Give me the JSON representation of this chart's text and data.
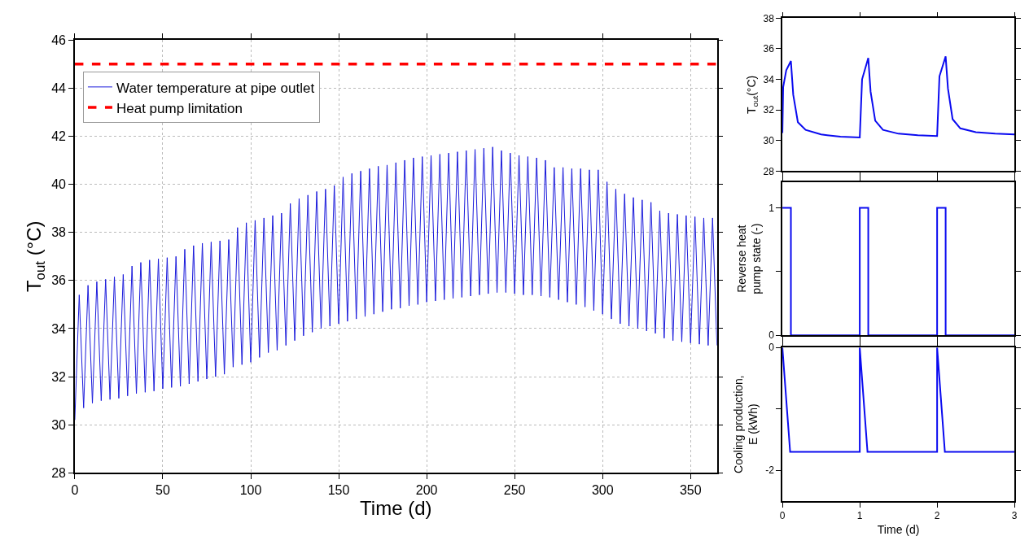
{
  "chart_data": [
    {
      "type": "line",
      "xlabel": "Time (d)",
      "ylabel": "T$_{out}$ (°C)",
      "xlim": [
        0,
        365
      ],
      "xticks": [
        0,
        50,
        100,
        150,
        200,
        250,
        300,
        350
      ],
      "ylim": [
        28,
        46
      ],
      "yticks": [
        28,
        30,
        32,
        34,
        36,
        38,
        40,
        42,
        44,
        46
      ],
      "grid": true,
      "legend": "top left",
      "series": [
        {
          "name": "Water temperature at pipe outlet",
          "color": "#1a1adb",
          "x": [
            0,
            2.5,
            5,
            7.5,
            10,
            12.5,
            15,
            17.5,
            20,
            22.5,
            25,
            27.5,
            30,
            32.5,
            35,
            37.5,
            40,
            42.5,
            45,
            47.5,
            50,
            52.5,
            55,
            57.5,
            60,
            62.5,
            65,
            67.5,
            70,
            72.5,
            75,
            77.5,
            80,
            82.5,
            85,
            87.5,
            90,
            92.5,
            95,
            97.5,
            100,
            102.5,
            105,
            107.5,
            110,
            112.5,
            115,
            117.5,
            120,
            122.5,
            125,
            127.5,
            130,
            132.5,
            135,
            137.5,
            140,
            142.5,
            145,
            147.5,
            150,
            152.5,
            155,
            157.5,
            160,
            162.5,
            165,
            167.5,
            170,
            172.5,
            175,
            177.5,
            180,
            182.5,
            185,
            187.5,
            190,
            192.5,
            195,
            197.5,
            200,
            202.5,
            205,
            207.5,
            210,
            212.5,
            215,
            217.5,
            220,
            222.5,
            225,
            227.5,
            230,
            232.5,
            235,
            237.5,
            240,
            242.5,
            245,
            247.5,
            250,
            252.5,
            255,
            257.5,
            260,
            262.5,
            265,
            267.5,
            270,
            272.5,
            275,
            277.5,
            280,
            282.5,
            285,
            287.5,
            290,
            292.5,
            295,
            297.5,
            300,
            302.5,
            305,
            307.5,
            310,
            312.5,
            315,
            317.5,
            320,
            322.5,
            325,
            327.5,
            330,
            332.5,
            335,
            337.5,
            340,
            342.5,
            345,
            347.5,
            350,
            352.5,
            355,
            357.5,
            360,
            362.5,
            365
          ],
          "values": [
            30.2,
            35.4,
            30.7,
            35.8,
            30.9,
            35.95,
            31.0,
            36.05,
            31.05,
            36.15,
            31.1,
            36.25,
            31.2,
            36.6,
            31.3,
            36.75,
            31.35,
            36.85,
            31.4,
            36.9,
            31.5,
            36.95,
            31.55,
            37.0,
            31.6,
            37.3,
            31.7,
            37.45,
            31.8,
            37.55,
            31.9,
            37.6,
            32.0,
            37.65,
            32.1,
            37.7,
            32.4,
            38.2,
            32.5,
            38.4,
            32.6,
            38.5,
            32.8,
            38.6,
            33.0,
            38.7,
            33.1,
            38.8,
            33.3,
            39.2,
            33.5,
            39.4,
            33.7,
            39.55,
            33.85,
            39.7,
            34.0,
            39.8,
            34.1,
            39.95,
            34.2,
            40.3,
            34.3,
            40.45,
            34.4,
            40.55,
            34.5,
            40.65,
            34.6,
            40.75,
            34.7,
            40.8,
            34.8,
            40.9,
            34.85,
            41.0,
            34.95,
            41.1,
            35.0,
            41.15,
            35.1,
            41.2,
            35.15,
            41.25,
            35.2,
            41.3,
            35.25,
            41.35,
            35.3,
            41.4,
            35.35,
            41.45,
            35.4,
            41.5,
            35.45,
            41.55,
            35.5,
            41.4,
            35.5,
            41.3,
            35.45,
            41.2,
            35.4,
            41.15,
            35.4,
            41.1,
            35.35,
            41.0,
            35.3,
            40.7,
            35.2,
            40.7,
            35.1,
            40.65,
            35.0,
            40.65,
            34.9,
            40.6,
            34.75,
            40.6,
            34.6,
            40.1,
            34.4,
            39.8,
            34.2,
            39.6,
            34.1,
            39.45,
            34.0,
            39.35,
            33.9,
            39.25,
            33.8,
            38.9,
            33.6,
            38.8,
            33.5,
            38.75,
            33.45,
            38.7,
            33.4,
            38.65,
            33.35,
            38.6,
            33.3,
            38.6,
            33.3
          ]
        }
      ],
      "ref_lines": [
        {
          "axis": "y",
          "value": 45,
          "label": "Heat pump limitation",
          "color": "#ff0000",
          "line_style": "dashed"
        }
      ]
    },
    {
      "type": "line",
      "ylabel": "T$_{out}$(°C)",
      "xlim": [
        0,
        3
      ],
      "xticks": [
        0,
        1,
        2,
        3
      ],
      "ylim": [
        28,
        38
      ],
      "yticks": [
        28,
        30,
        32,
        34,
        36,
        38
      ],
      "tick_labels": "y",
      "series": [
        {
          "color": "#0a0af0",
          "x": [
            0,
            0.01,
            0.05,
            0.11,
            0.14,
            0.2,
            0.3,
            0.5,
            0.75,
            1.0,
            1.03,
            1.11,
            1.14,
            1.2,
            1.3,
            1.5,
            1.75,
            2.0,
            2.03,
            2.11,
            2.14,
            2.2,
            2.3,
            2.5,
            2.75,
            3.0
          ],
          "values": [
            30.5,
            33.5,
            34.6,
            35.2,
            33.0,
            31.2,
            30.7,
            30.4,
            30.25,
            30.2,
            34.0,
            35.4,
            33.2,
            31.3,
            30.7,
            30.45,
            30.35,
            30.3,
            34.2,
            35.5,
            33.4,
            31.4,
            30.8,
            30.55,
            30.45,
            30.4
          ]
        }
      ]
    },
    {
      "type": "step",
      "ylabel": "Reverse heat\npump state (-)",
      "xlim": [
        0,
        3
      ],
      "xticks": [
        0,
        1,
        2,
        3
      ],
      "ylim": [
        0,
        1.2
      ],
      "yticks": [
        0,
        {
          "value": 0.5,
          "label": null
        },
        1
      ],
      "tick_labels": "y",
      "series": [
        {
          "color": "#0a0af0",
          "x": [
            0,
            0.11,
            1,
            1.11,
            2,
            2.11,
            3
          ],
          "values": [
            1,
            0,
            1,
            0,
            1,
            0,
            0
          ]
        }
      ]
    },
    {
      "type": "line",
      "xlabel": "Time (d)",
      "ylabel": "Cooling production,\nE (kWh)",
      "xlim": [
        0,
        3
      ],
      "xticks": [
        0,
        1,
        2,
        3
      ],
      "ylim": [
        -2.5,
        0
      ],
      "yticks": [
        0,
        {
          "value": -1,
          "label": null
        },
        -2
      ],
      "series": [
        {
          "color": "#0a0af0",
          "x": [
            0,
            0.1,
            1,
            1,
            1.1,
            2,
            2,
            2.1,
            3
          ],
          "values": [
            0,
            -1.7,
            -1.7,
            0,
            -1.7,
            -1.7,
            0,
            -1.7,
            -1.7
          ]
        }
      ]
    }
  ]
}
